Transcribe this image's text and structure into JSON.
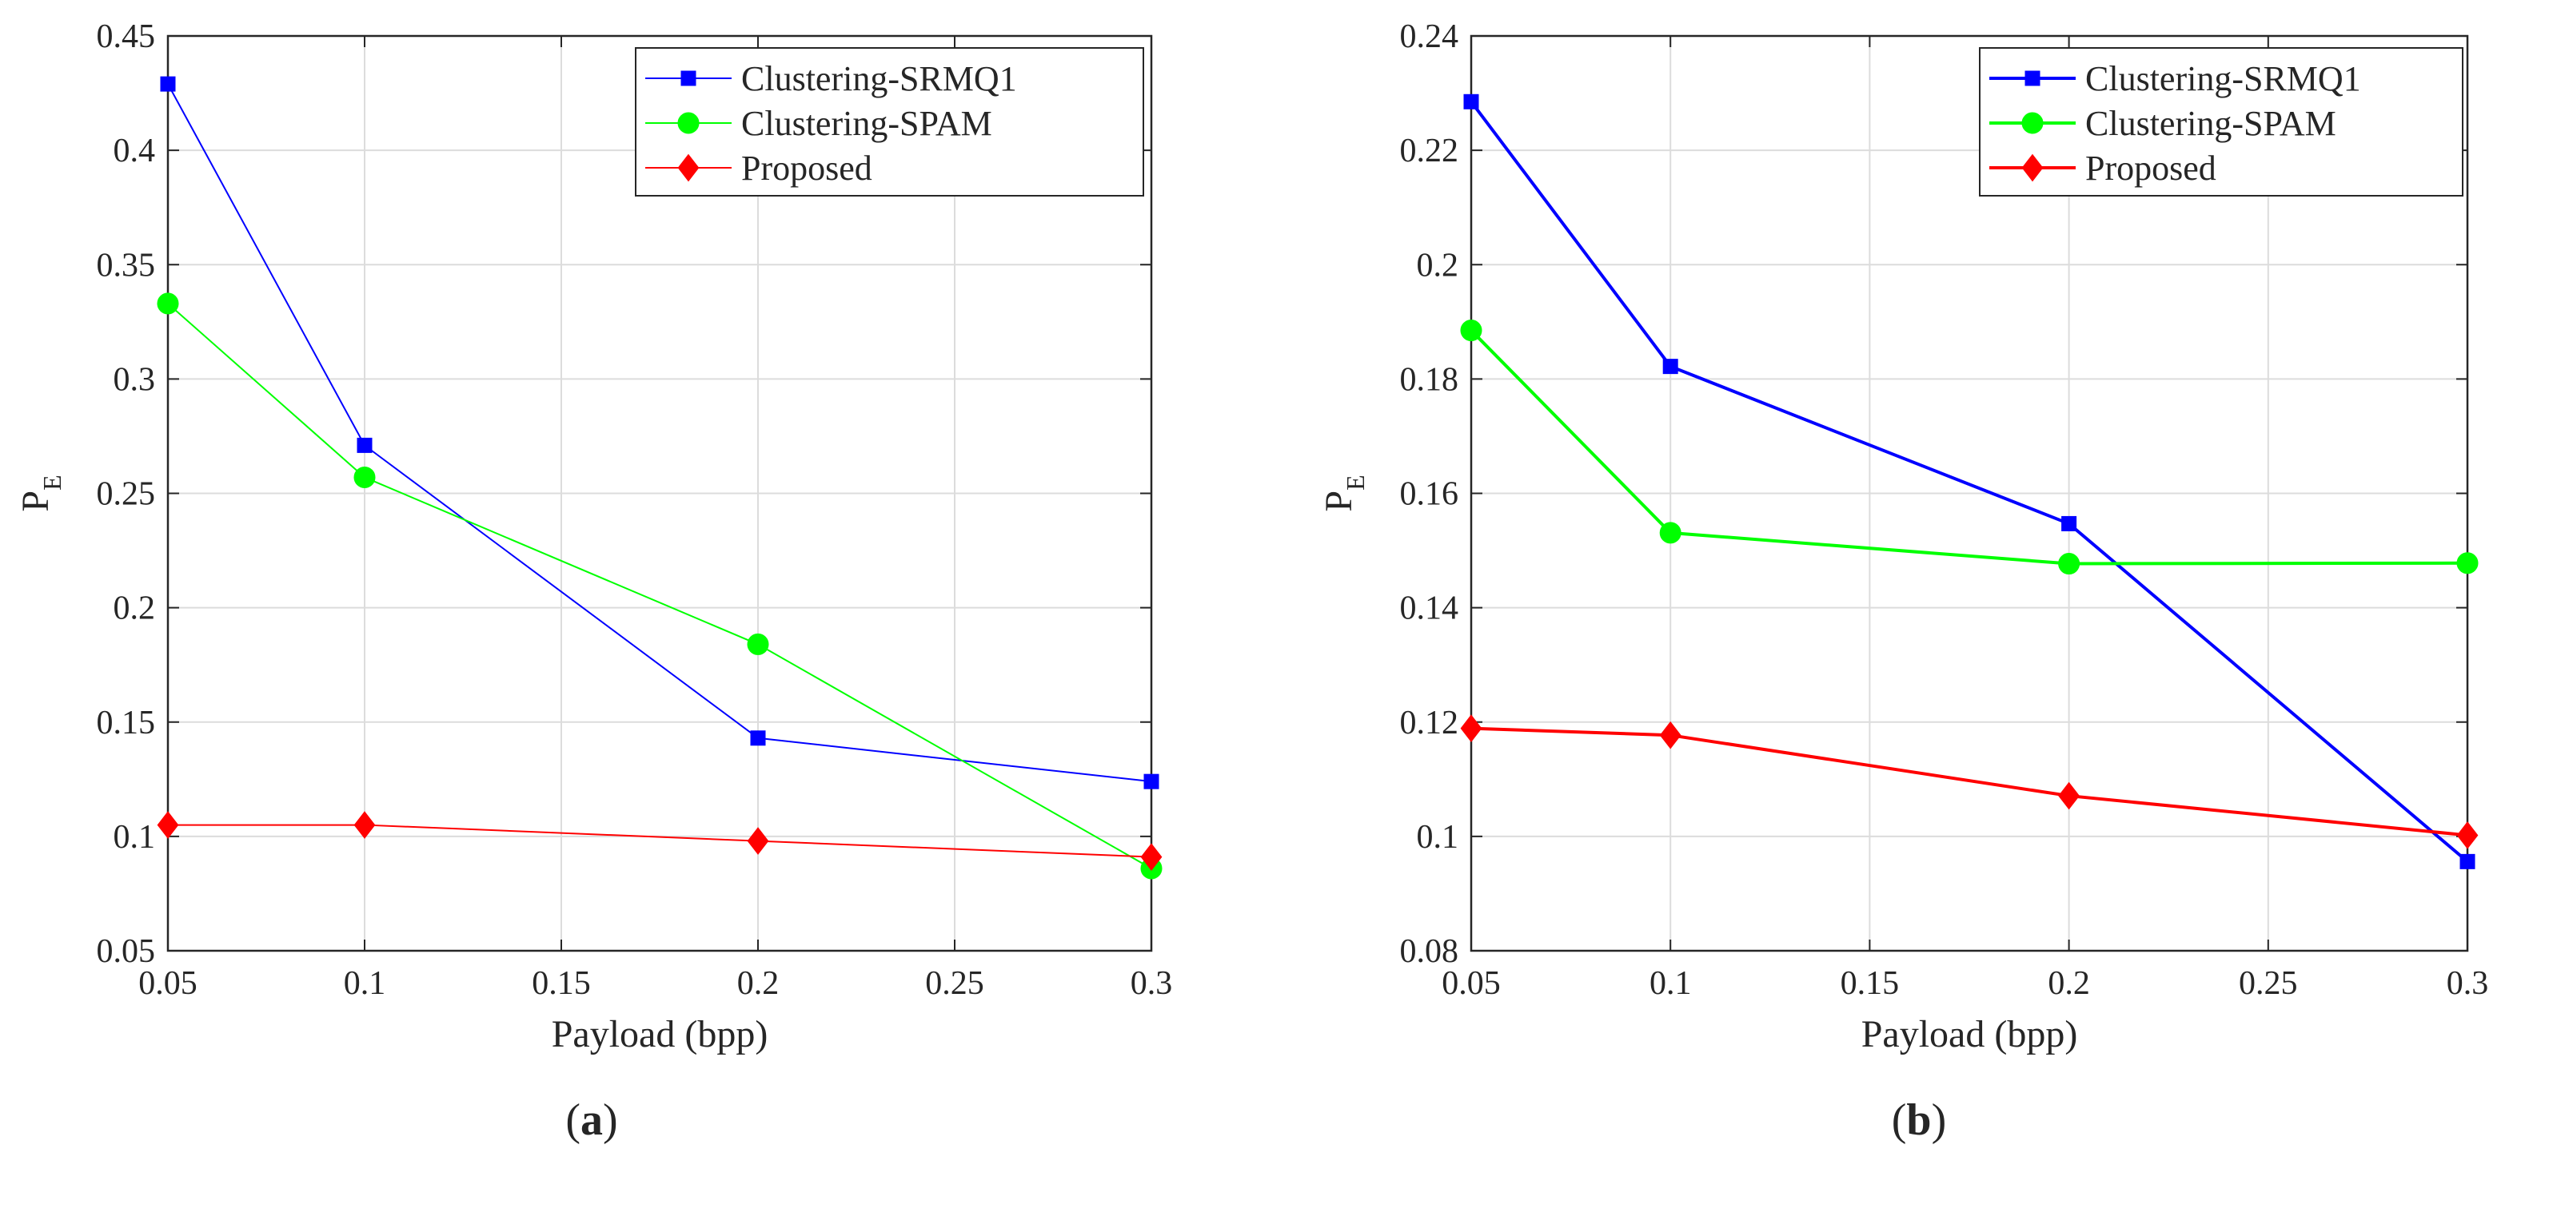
{
  "chart_data": [
    {
      "type": "line",
      "panel_label_prefix": "(",
      "panel_label_letter": "a",
      "panel_label_suffix": ")",
      "xlabel": "Payload (bpp)",
      "ylabel_main": "P",
      "ylabel_sub": "E",
      "xlim": [
        0.05,
        0.3
      ],
      "ylim": [
        0.05,
        0.45
      ],
      "xticks": [
        0.05,
        0.1,
        0.15,
        0.2,
        0.25,
        0.3
      ],
      "xtick_labels": [
        "0.05",
        "0.1",
        "0.15",
        "0.2",
        "0.25",
        "0.3"
      ],
      "yticks": [
        0.05,
        0.1,
        0.15,
        0.2,
        0.25,
        0.3,
        0.35,
        0.4,
        0.45
      ],
      "ytick_labels": [
        "0.05",
        "0.1",
        "0.15",
        "0.2",
        "0.25",
        "0.3",
        "0.35",
        "0.4",
        "0.45"
      ],
      "grid": true,
      "legend_position": "top-right",
      "series": [
        {
          "name": "Clustering-SRMQ1",
          "color": "#0000ff",
          "marker": "square",
          "x": [
            0.05,
            0.1,
            0.2,
            0.3
          ],
          "y": [
            0.429,
            0.271,
            0.143,
            0.124
          ]
        },
        {
          "name": "Clustering-SPAM",
          "color": "#00ff00",
          "marker": "circle",
          "x": [
            0.05,
            0.1,
            0.2,
            0.3
          ],
          "y": [
            0.333,
            0.257,
            0.184,
            0.086
          ]
        },
        {
          "name": "Proposed",
          "color": "#ff0000",
          "marker": "diamond",
          "x": [
            0.05,
            0.1,
            0.2,
            0.3
          ],
          "y": [
            0.105,
            0.105,
            0.098,
            0.091
          ]
        }
      ]
    },
    {
      "type": "line",
      "panel_label_prefix": "(",
      "panel_label_letter": "b",
      "panel_label_suffix": ")",
      "xlabel": "Payload (bpp)",
      "ylabel_main": "P",
      "ylabel_sub": "E",
      "xlim": [
        0.05,
        0.3
      ],
      "ylim": [
        0.08,
        0.24
      ],
      "xticks": [
        0.05,
        0.1,
        0.15,
        0.2,
        0.25,
        0.3
      ],
      "xtick_labels": [
        "0.05",
        "0.1",
        "0.15",
        "0.2",
        "0.25",
        "0.3"
      ],
      "yticks": [
        0.08,
        0.1,
        0.12,
        0.14,
        0.16,
        0.18,
        0.2,
        0.22,
        0.24
      ],
      "ytick_labels": [
        "0.08",
        "0.1",
        "0.12",
        "0.14",
        "0.16",
        "0.18",
        "0.2",
        "0.22",
        "0.24"
      ],
      "grid": true,
      "legend_position": "top-right",
      "series": [
        {
          "name": "Clustering-SRMQ1",
          "color": "#0000ff",
          "marker": "square",
          "x": [
            0.05,
            0.1,
            0.2,
            0.3
          ],
          "y": [
            0.2285,
            0.1822,
            0.1547,
            0.0956
          ]
        },
        {
          "name": "Clustering-SPAM",
          "color": "#00ff00",
          "marker": "circle",
          "x": [
            0.05,
            0.1,
            0.2,
            0.3
          ],
          "y": [
            0.1885,
            0.1531,
            0.1477,
            0.1478
          ]
        },
        {
          "name": "Proposed",
          "color": "#ff0000",
          "marker": "diamond",
          "x": [
            0.05,
            0.1,
            0.2,
            0.3
          ],
          "y": [
            0.1189,
            0.1177,
            0.1071,
            0.1002
          ]
        }
      ]
    }
  ]
}
